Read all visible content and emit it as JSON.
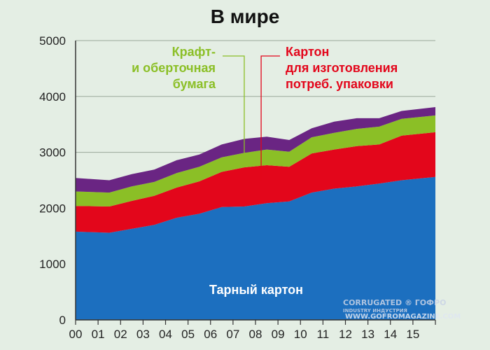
{
  "title": "В мире",
  "chart_data": {
    "type": "area",
    "stacked": true,
    "categories": [
      "00",
      "01",
      "02",
      "03",
      "04",
      "05",
      "06",
      "07",
      "08",
      "09",
      "10",
      "11",
      "12",
      "13",
      "14",
      "15"
    ],
    "ylim": [
      0,
      5000
    ],
    "yticks": [
      0,
      1000,
      2000,
      3000,
      4000,
      5000
    ],
    "grid": true,
    "series": [
      {
        "name": "Тарный картон",
        "color": "#1c6fbf",
        "values": [
          1580,
          1560,
          1630,
          1700,
          1830,
          1900,
          2020,
          2030,
          2090,
          2120,
          2280,
          2350,
          2390,
          2440,
          2500,
          2560
        ]
      },
      {
        "name": "Картон для изготовления потреб. упаковки",
        "color": "#e3061b",
        "values": [
          460,
          470,
          500,
          520,
          540,
          580,
          630,
          700,
          680,
          620,
          700,
          700,
          720,
          700,
          800,
          800
        ]
      },
      {
        "name": "Крафт- и оберточная бумага",
        "color": "#8bbf26",
        "values": [
          260,
          250,
          260,
          250,
          260,
          260,
          260,
          260,
          280,
          270,
          290,
          300,
          310,
          320,
          300,
          300
        ]
      },
      {
        "name": "",
        "color": "#6a2583",
        "values": [
          240,
          220,
          220,
          220,
          230,
          220,
          230,
          250,
          230,
          210,
          160,
          200,
          190,
          150,
          140,
          150
        ]
      }
    ],
    "annotations": [
      {
        "lines": [
          "Крафт-",
          "и оберточная",
          "бумага"
        ],
        "color": "#8bbf26"
      },
      {
        "lines": [
          "Картон",
          "для изготовления",
          "потреб. упаковки"
        ],
        "color": "#e3061b"
      },
      {
        "lines": [
          "Тарный картон"
        ],
        "color": "#ffffff"
      }
    ]
  },
  "watermark": {
    "line1": "CORRUGATED ® ГОФРО",
    "line2": "INDUSTRY   ИНДУСТРИЯ",
    "url": "WWW.GOFROMAGAZINE.COM"
  }
}
